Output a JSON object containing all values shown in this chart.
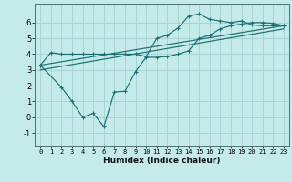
{
  "xlabel": "Humidex (Indice chaleur)",
  "bg_color": "#c5eaea",
  "line_color": "#1a7070",
  "grid_color": "#aad4d4",
  "xlim": [
    -0.5,
    23.5
  ],
  "ylim": [
    -1.8,
    7.2
  ],
  "xticks": [
    0,
    1,
    2,
    3,
    4,
    5,
    6,
    7,
    8,
    9,
    10,
    11,
    12,
    13,
    14,
    15,
    16,
    17,
    18,
    19,
    20,
    21,
    22,
    23
  ],
  "yticks": [
    -1,
    0,
    1,
    2,
    3,
    4,
    5,
    6
  ],
  "line1_x": [
    0,
    1,
    2,
    3,
    4,
    5,
    6,
    7,
    8,
    9,
    10,
    11,
    12,
    13,
    14,
    15,
    16,
    17,
    18,
    19,
    20,
    21,
    22,
    23
  ],
  "line1_y": [
    3.3,
    4.1,
    4.0,
    4.0,
    4.0,
    4.0,
    4.0,
    4.0,
    4.0,
    4.0,
    3.85,
    5.0,
    5.2,
    5.65,
    6.4,
    6.55,
    6.2,
    6.1,
    6.0,
    6.1,
    5.85,
    5.8,
    5.8,
    5.8
  ],
  "line2_x": [
    0,
    2,
    3,
    4,
    5,
    6,
    7,
    8,
    9,
    10,
    11,
    12,
    13,
    14,
    15,
    16,
    17,
    18,
    19,
    20,
    21,
    22,
    23
  ],
  "line2_y": [
    3.3,
    1.9,
    1.0,
    0.0,
    0.25,
    -0.6,
    1.6,
    1.65,
    2.9,
    3.8,
    3.8,
    3.85,
    4.0,
    4.2,
    5.0,
    5.2,
    5.6,
    5.8,
    5.9,
    6.0,
    6.0,
    5.95,
    5.8
  ],
  "line3_x": [
    0,
    23
  ],
  "line3_y": [
    3.3,
    5.8
  ],
  "line4_x": [
    0,
    23
  ],
  "line4_y": [
    3.0,
    5.6
  ]
}
